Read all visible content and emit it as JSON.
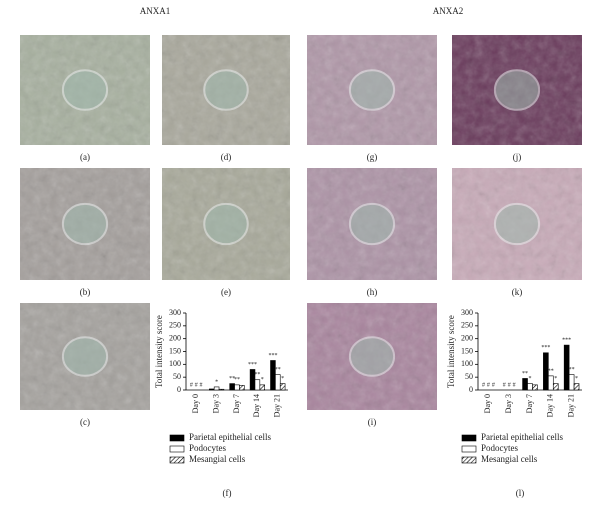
{
  "headers": [
    "ANXA1",
    "ANXA2"
  ],
  "panels": [
    "(a)",
    "(d)",
    "(g)",
    "(j)",
    "(b)",
    "(e)",
    "(h)",
    "(k)",
    "(c)",
    "(i)"
  ],
  "chart_data": [
    {
      "type": "bar",
      "panel": "(f)",
      "ylabel": "Total intensity score",
      "categories": [
        "Day 0",
        "Day 3",
        "Day 7",
        "Day 14",
        "Day 21"
      ],
      "ylim": [
        0,
        300
      ],
      "yticks": [
        0,
        50,
        100,
        150,
        200,
        250,
        300
      ],
      "series": [
        {
          "name": "Parietal epithelial cells",
          "color": "#000000",
          "values": [
            0,
            4,
            25,
            80,
            115
          ],
          "marks": [
            "#",
            null,
            "**",
            "***",
            "***"
          ]
        },
        {
          "name": "Podocytes",
          "color": "#ffffff",
          "values": [
            0,
            12,
            20,
            40,
            60
          ],
          "marks": [
            "#",
            "*",
            "**",
            "**",
            "**"
          ]
        },
        {
          "name": "Mesangial cells",
          "color": "#000000",
          "hatch": true,
          "values": [
            0,
            3,
            18,
            20,
            25
          ],
          "marks": [
            "#",
            null,
            null,
            "*",
            "*"
          ]
        }
      ]
    },
    {
      "type": "bar",
      "panel": "(l)",
      "ylabel": "Total intensity score",
      "categories": [
        "Day 0",
        "Day 3",
        "Day 7",
        "Day 14",
        "Day 21"
      ],
      "ylim": [
        0,
        300
      ],
      "yticks": [
        0,
        50,
        100,
        150,
        200,
        250,
        300
      ],
      "series": [
        {
          "name": "Parietal epithelial cells",
          "color": "#000000",
          "values": [
            0,
            0,
            45,
            145,
            175
          ],
          "marks": [
            "#",
            "#",
            "**",
            "***",
            "***"
          ]
        },
        {
          "name": "Podocytes",
          "color": "#ffffff",
          "values": [
            0,
            0,
            25,
            55,
            60
          ],
          "marks": [
            "#",
            "#",
            "*",
            "**",
            "**"
          ]
        },
        {
          "name": "Mesangial cells",
          "color": "#000000",
          "hatch": true,
          "values": [
            0,
            0,
            20,
            25,
            25
          ],
          "marks": [
            "#",
            "#",
            null,
            "*",
            "*"
          ]
        }
      ]
    }
  ]
}
